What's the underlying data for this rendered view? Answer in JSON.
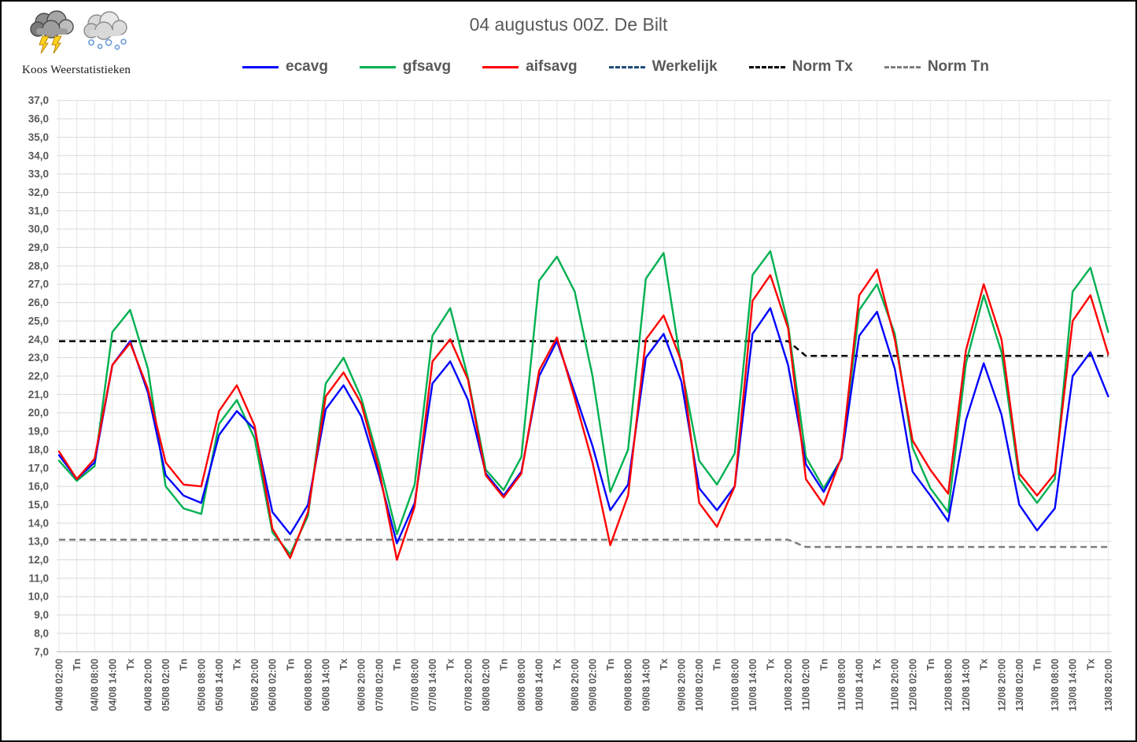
{
  "page": {
    "title": "04 augustus 00Z. De Bilt"
  },
  "logo": {
    "caption": "Koos Weerstatistieken",
    "icons": [
      "storm-cloud-icon",
      "snow-cloud-icon"
    ]
  },
  "legend": [
    {
      "label": "ecavg",
      "color": "#0000FF",
      "style": "solid"
    },
    {
      "label": "gfsavg",
      "color": "#00B050",
      "style": "solid"
    },
    {
      "label": "aifsavg",
      "color": "#FF0000",
      "style": "solid"
    },
    {
      "label": "Werkelijk",
      "color": "#1F4E79",
      "style": "dashed"
    },
    {
      "label": "Norm Tx",
      "color": "#000000",
      "style": "dashed"
    },
    {
      "label": "Norm Tn",
      "color": "#7F7F7F",
      "style": "dashed"
    }
  ],
  "colors": {
    "grid_h": "#D9D9D9",
    "grid_v": "#E7E7E7",
    "axis_line": "#BFBFBF",
    "tick_label": "#595959",
    "title": "#595959"
  },
  "chart_data": {
    "type": "line",
    "title": "04 augustus 00Z. De Bilt",
    "xlabel": "",
    "ylabel": "",
    "ylim": [
      7.0,
      37.0
    ],
    "y_tick_step": 1.0,
    "decimal_separator": ",",
    "grid": true,
    "legend_position": "top",
    "x_labels": [
      "04/08 02:00",
      "Tn",
      "04/08 08:00",
      "04/08 14:00",
      "Tx",
      "04/08 20:00",
      "05/08 02:00",
      "Tn",
      "05/08 08:00",
      "05/08 14:00",
      "Tx",
      "05/08 20:00",
      "06/08 02:00",
      "Tn",
      "06/08 08:00",
      "06/08 14:00",
      "Tx",
      "06/08 20:00",
      "07/08 02:00",
      "Tn",
      "07/08 08:00",
      "07/08 14:00",
      "Tx",
      "07/08 20:00",
      "08/08 02:00",
      "Tn",
      "08/08 08:00",
      "08/08 14:00",
      "Tx",
      "08/08 20:00",
      "09/08 02:00",
      "Tn",
      "09/08 08:00",
      "09/08 14:00",
      "Tx",
      "09/08 20:00",
      "10/08 02:00",
      "Tn",
      "10/08 08:00",
      "10/08 14:00",
      "Tx",
      "10/08 20:00",
      "11/08 02:00",
      "Tn",
      "11/08 08:00",
      "11/08 14:00",
      "Tx",
      "11/08 20:00",
      "12/08 02:00",
      "Tn",
      "12/08 08:00",
      "12/08 14:00",
      "Tx",
      "12/08 20:00",
      "13/08 02:00",
      "Tn",
      "13/08 08:00",
      "13/08 14:00",
      "Tx",
      "13/08 20:00"
    ],
    "series": [
      {
        "name": "ecavg",
        "color": "#0000FF",
        "style": "solid",
        "values": [
          17.7,
          16.4,
          17.3,
          22.6,
          23.9,
          21.1,
          16.6,
          15.5,
          15.1,
          18.8,
          20.1,
          19.1,
          14.6,
          13.4,
          15.0,
          20.2,
          21.5,
          19.8,
          16.6,
          12.9,
          15.1,
          21.6,
          22.8,
          20.7,
          16.7,
          15.5,
          16.8,
          22.0,
          23.9,
          21.1,
          18.2,
          14.7,
          16.1,
          23.0,
          24.3,
          21.7,
          15.9,
          14.7,
          16.0,
          24.3,
          25.7,
          22.6,
          17.2,
          15.7,
          17.5,
          24.2,
          25.5,
          22.4,
          16.8,
          15.5,
          14.1,
          19.6,
          22.7,
          19.9,
          15.0,
          13.6,
          14.8,
          22.0,
          23.3,
          20.9
        ]
      },
      {
        "name": "gfsavg",
        "color": "#00B050",
        "style": "solid",
        "values": [
          17.4,
          16.3,
          17.1,
          24.4,
          25.6,
          22.4,
          16.0,
          14.8,
          14.5,
          19.4,
          20.7,
          18.6,
          13.5,
          12.3,
          14.4,
          21.6,
          23.0,
          20.8,
          17.3,
          13.4,
          16.1,
          24.2,
          25.7,
          21.9,
          16.9,
          15.8,
          17.6,
          27.2,
          28.5,
          26.6,
          22.0,
          15.7,
          18.0,
          27.3,
          28.7,
          22.5,
          17.4,
          16.1,
          17.8,
          27.5,
          28.8,
          24.8,
          17.6,
          15.9,
          17.5,
          25.6,
          27.0,
          24.3,
          18.1,
          15.9,
          14.6,
          22.7,
          26.4,
          23.3,
          16.4,
          15.1,
          16.4,
          26.6,
          27.9,
          24.4
        ]
      },
      {
        "name": "aifsavg",
        "color": "#FF0000",
        "style": "solid",
        "values": [
          17.9,
          16.4,
          17.5,
          22.6,
          23.8,
          21.3,
          17.3,
          16.1,
          16.0,
          20.1,
          21.5,
          19.3,
          13.7,
          12.1,
          14.6,
          20.9,
          22.2,
          20.5,
          16.9,
          12.0,
          14.9,
          22.8,
          24.0,
          21.8,
          16.6,
          15.4,
          16.7,
          22.3,
          24.1,
          20.8,
          17.3,
          12.8,
          15.5,
          24.0,
          25.3,
          22.8,
          15.1,
          13.8,
          16.0,
          26.1,
          27.5,
          24.6,
          16.4,
          15.0,
          17.6,
          26.4,
          27.8,
          24.0,
          18.5,
          16.9,
          15.6,
          23.4,
          27.0,
          24.0,
          16.7,
          15.5,
          16.7,
          25.0,
          26.4,
          23.2
        ]
      },
      {
        "name": "Werkelijk",
        "color": "#1F4E79",
        "style": "dashed",
        "values": []
      },
      {
        "name": "Norm Tx",
        "color": "#000000",
        "style": "dashed",
        "step": {
          "before": 23.9,
          "after": 23.1,
          "last_index_before": 41,
          "first_index_after": 42
        }
      },
      {
        "name": "Norm Tn",
        "color": "#7F7F7F",
        "style": "dashed",
        "step": {
          "before": 13.1,
          "after": 12.7,
          "last_index_before": 41,
          "first_index_after": 42
        }
      }
    ]
  }
}
